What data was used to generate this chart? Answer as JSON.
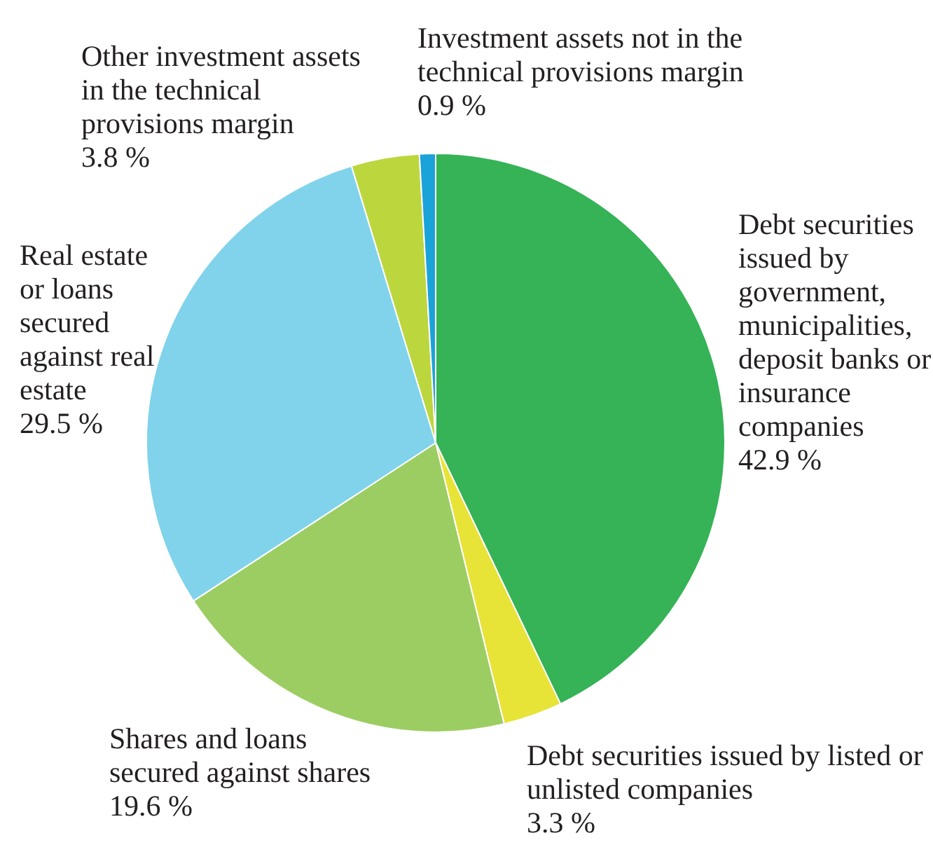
{
  "chart_data": {
    "type": "pie",
    "categories": [
      "Debt securities issued by government, municipalities, deposit banks or insurance companies",
      "Debt securities issued by listed or unlisted companies",
      "Shares and loans secured against shares",
      "Real estate or loans secured against real estate",
      "Other investment assets in the technical provisions margin",
      "Investment assets not in the technical provisions margin"
    ],
    "values": [
      42.9,
      3.3,
      19.6,
      29.5,
      3.8,
      0.9
    ],
    "value_labels": [
      "42.9 %",
      "3.3 %",
      "19.6 %",
      "29.5 %",
      "3.8 %",
      "0.9 %"
    ],
    "colors": [
      "#35b356",
      "#e8e337",
      "#9ccd62",
      "#80d3eb",
      "#bcd63e",
      "#1aa3d9"
    ],
    "legend": false
  }
}
